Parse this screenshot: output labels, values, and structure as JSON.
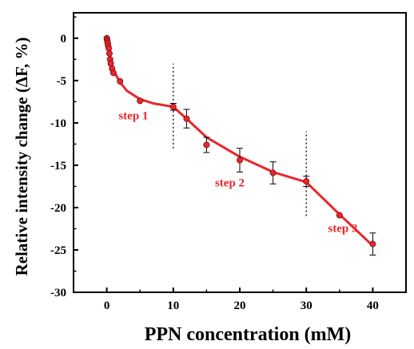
{
  "chart_data": {
    "type": "scatter",
    "title": "",
    "xlabel": "PPN concentration (mM)",
    "ylabel": "Relative intensity change (ΔF, %)",
    "xlim": [
      -5,
      45
    ],
    "ylim": [
      -30,
      3
    ],
    "xticks": [
      0,
      10,
      20,
      30,
      40
    ],
    "yticks": [
      0,
      -5,
      -10,
      -15,
      -20,
      -25,
      -30
    ],
    "xtick_labels": [
      "0",
      "10",
      "20",
      "30",
      "40"
    ],
    "ytick_labels": [
      "0",
      "-5",
      "-10",
      "-15",
      "-20",
      "-25",
      "-30"
    ],
    "grid": false,
    "legend": false,
    "colors": {
      "series": "#e8262b",
      "fit": "#e8262b",
      "error": "#000000",
      "annotation": "#e8262b"
    },
    "series": [
      {
        "x": [
          0.0,
          0.05,
          0.1,
          0.15,
          0.2,
          0.3,
          0.4,
          0.5,
          0.6,
          0.8,
          1.0,
          2.0,
          5,
          10,
          12,
          15,
          20,
          25,
          30,
          35,
          40
        ],
        "values": [
          0.0,
          -0.2,
          -0.4,
          -0.6,
          -0.9,
          -1.2,
          -1.8,
          -2.5,
          -3.0,
          -3.6,
          -4.1,
          -5.1,
          -7.4,
          -8.1,
          -9.5,
          -12.6,
          -14.4,
          -15.9,
          -16.9,
          -20.9,
          -24.3
        ],
        "error": [
          0.1,
          0.1,
          0.1,
          0.1,
          0.2,
          0.2,
          0.3,
          0.3,
          0.3,
          0.3,
          0.3,
          0.2,
          0.2,
          0.4,
          1.1,
          0.9,
          1.4,
          1.3,
          0.6,
          0.2,
          1.3
        ]
      }
    ],
    "fit_line": {
      "x": [
        0,
        0.3,
        0.6,
        1,
        2,
        3,
        5,
        7,
        10,
        12,
        15,
        20,
        25,
        30,
        35,
        40
      ],
      "values": [
        0,
        -1.3,
        -2.6,
        -3.8,
        -5.2,
        -6.2,
        -7.2,
        -7.7,
        -8.1,
        -9.5,
        -11.7,
        -14.0,
        -15.8,
        -17.0,
        -20.8,
        -24.5
      ]
    },
    "dividers": [
      {
        "x": 10,
        "y_from": -13,
        "y_to": -3
      },
      {
        "x": 30,
        "y_from": -21,
        "y_to": -11
      }
    ],
    "annotations": [
      {
        "text": "step 1",
        "x": 4,
        "y": -9.6
      },
      {
        "text": "step 2",
        "x": 18.5,
        "y": -17.5
      },
      {
        "text": "step 3",
        "x": 35.5,
        "y": -22.9
      }
    ]
  }
}
